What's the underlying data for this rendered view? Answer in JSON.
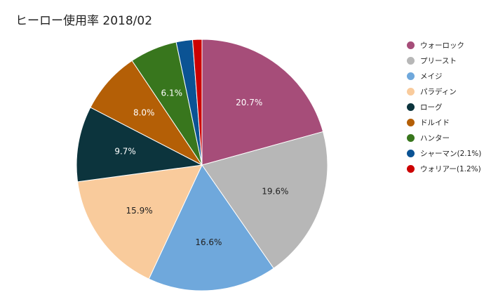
{
  "title": "ヒーロー使用率 2018/02",
  "chart_data": {
    "type": "pie",
    "title": "ヒーロー使用率 2018/02",
    "legend_position": "right",
    "start_angle": "top",
    "direction": "clockwise",
    "slices": [
      {
        "label": "ウォーロック",
        "value": 20.7,
        "display": "20.7%",
        "color": "#a64d79"
      },
      {
        "label": "プリースト",
        "value": 19.6,
        "display": "19.6%",
        "color": "#b7b7b7"
      },
      {
        "label": "メイジ",
        "value": 16.6,
        "display": "16.6%",
        "color": "#6fa8dc"
      },
      {
        "label": "パラディン",
        "value": 15.9,
        "display": "15.9%",
        "color": "#f9cb9c"
      },
      {
        "label": "ローグ",
        "value": 9.7,
        "display": "9.7%",
        "color": "#0c343d"
      },
      {
        "label": "ドルイド",
        "value": 8.0,
        "display": "8.0%",
        "color": "#b45f06"
      },
      {
        "label": "ハンター",
        "value": 6.1,
        "display": "6.1%",
        "color": "#38761d"
      },
      {
        "label": "シャーマン(2.1%)",
        "value": 2.1,
        "display": "",
        "color": "#0b5394"
      },
      {
        "label": "ウォリアー(1.2%)",
        "value": 1.2,
        "display": "",
        "color": "#cc0000"
      }
    ]
  }
}
